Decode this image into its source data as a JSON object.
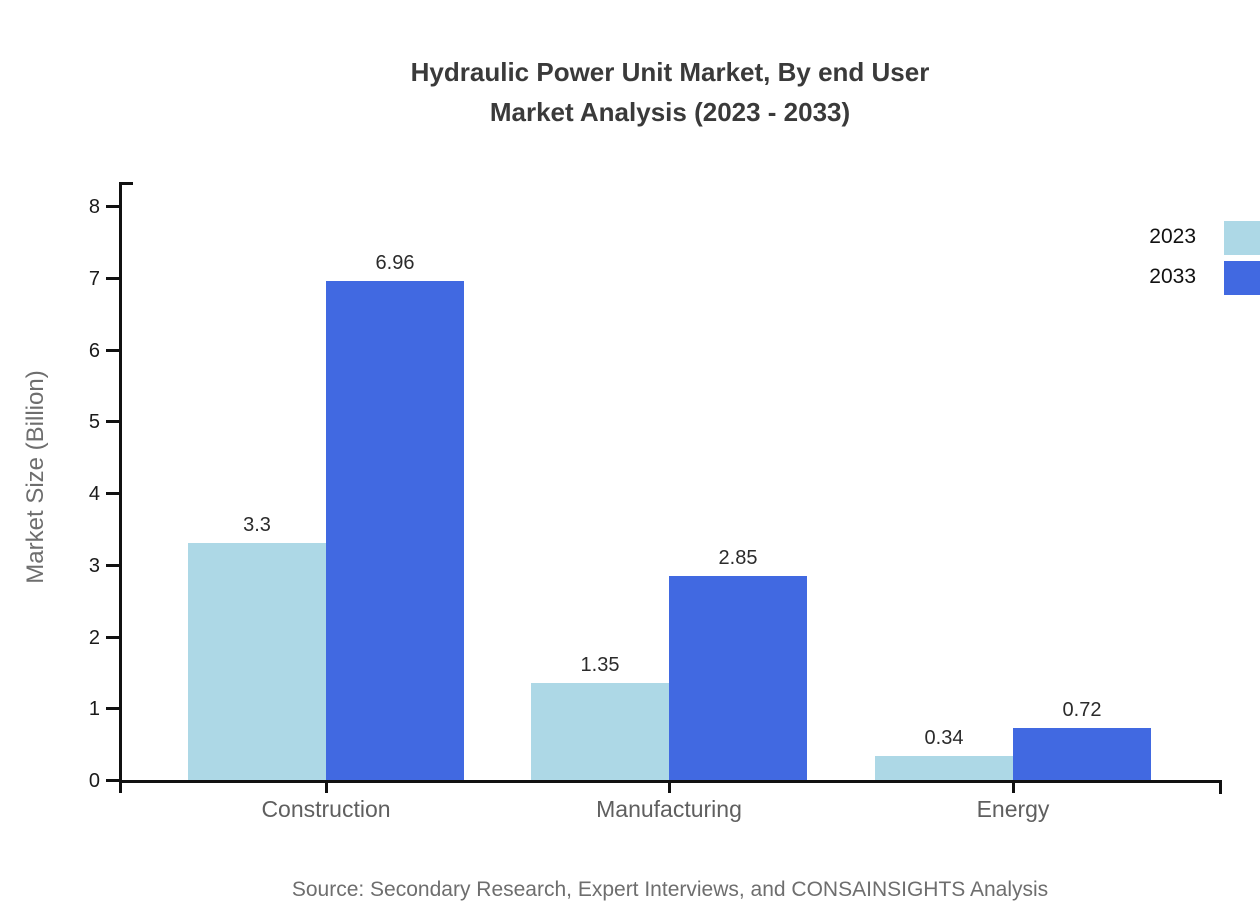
{
  "title": {
    "line1": "Hydraulic Power Unit Market, By end User",
    "line2": "Market Analysis (2023 - 2033)"
  },
  "source_note": "Source: Secondary Research, Expert Interviews, and CONSAINSIGHTS Analysis",
  "chart_data": {
    "type": "bar",
    "title": "Hydraulic Power Unit Market, By end User Market Analysis (2023 - 2033)",
    "categories": [
      "Construction",
      "Manufacturing",
      "Energy"
    ],
    "series": [
      {
        "name": "2023",
        "color": "#add8e6",
        "values": [
          3.3,
          1.35,
          0.34
        ]
      },
      {
        "name": "2033",
        "color": "#4169e1",
        "values": [
          6.96,
          2.85,
          0.72
        ]
      }
    ],
    "bar_value_labels": [
      "3.3",
      "6.96",
      "1.35",
      "2.85",
      "0.34",
      "0.72"
    ],
    "xlabel": "",
    "ylabel": "Market Size (Billion)",
    "ylim": [
      0,
      8
    ],
    "yticks": [
      0,
      1,
      2,
      3,
      4,
      5,
      6,
      7,
      8
    ],
    "grid": false,
    "legend_position": "top-right"
  },
  "colors": {
    "series_2023": "#add8e6",
    "series_2033": "#4169e1",
    "title_text": "#3a3a3a",
    "axis_tick_text": "#1a1a1a",
    "category_text": "#5f5f5f",
    "muted_text": "#6e6e6e",
    "axis_line": "#111111",
    "background": "#ffffff"
  }
}
